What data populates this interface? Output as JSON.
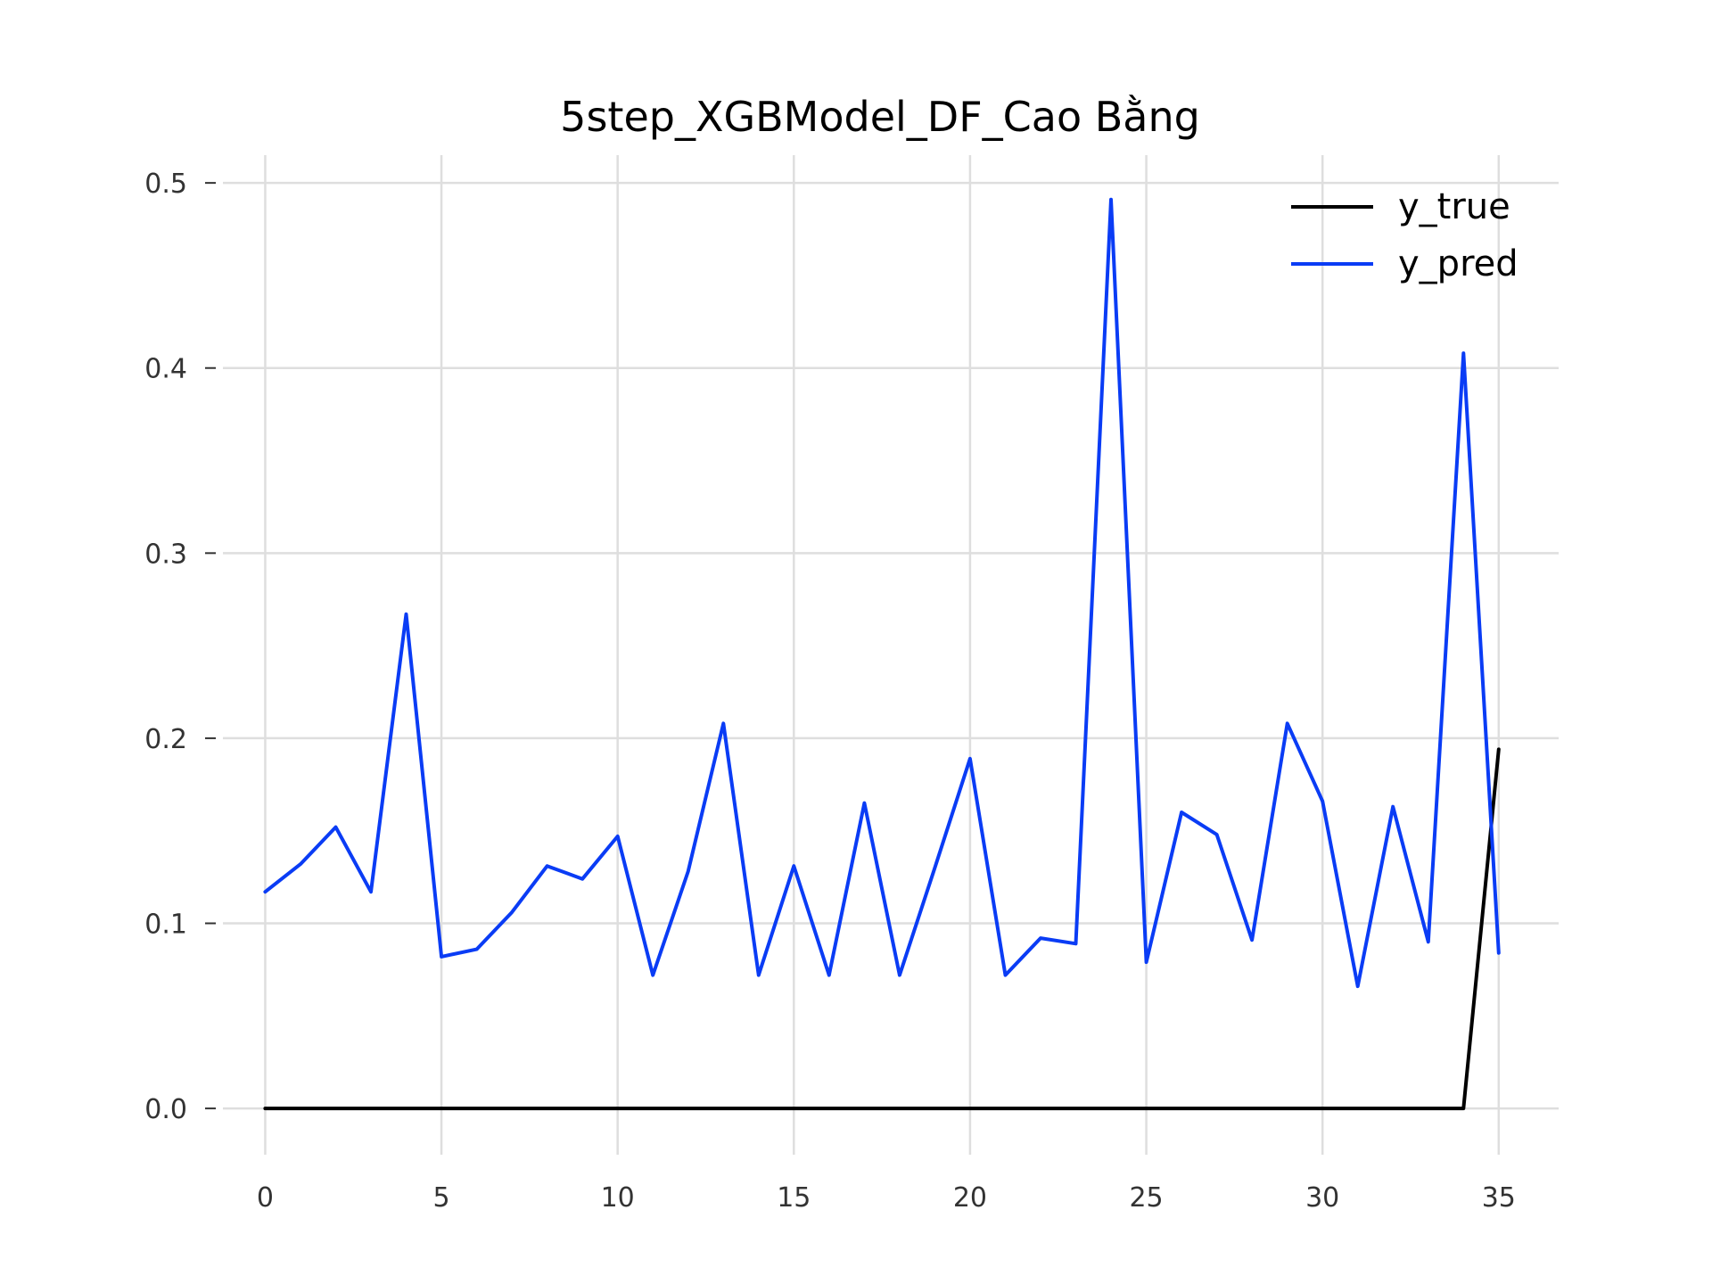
{
  "chart_data": {
    "type": "line",
    "title": "5step_XGBModel_DF_Cao Bằng",
    "xlabel": "",
    "ylabel": "",
    "x": [
      0,
      1,
      2,
      3,
      4,
      5,
      6,
      7,
      8,
      9,
      10,
      11,
      12,
      13,
      14,
      15,
      16,
      17,
      18,
      19,
      20,
      21,
      22,
      23,
      24,
      25,
      26,
      27,
      28,
      29,
      30,
      31,
      32,
      33,
      34,
      35
    ],
    "xlim": [
      -1.2,
      36.7
    ],
    "ylim": [
      -0.025,
      0.515
    ],
    "xticks": [
      0,
      5,
      10,
      15,
      20,
      25,
      30,
      35
    ],
    "xtick_labels": [
      "0",
      "5",
      "10",
      "15",
      "20",
      "25",
      "30",
      "35"
    ],
    "yticks": [
      0.0,
      0.1,
      0.2,
      0.3,
      0.4,
      0.5
    ],
    "ytick_labels": [
      "0.0",
      "0.1",
      "0.2",
      "0.3",
      "0.4",
      "0.5"
    ],
    "grid": true,
    "legend_position": "top-right",
    "series": [
      {
        "name": "y_true",
        "color": "#000000",
        "values": [
          0,
          0,
          0,
          0,
          0,
          0,
          0,
          0,
          0,
          0,
          0,
          0,
          0,
          0,
          0,
          0,
          0,
          0,
          0,
          0,
          0,
          0,
          0,
          0,
          0,
          0,
          0,
          0,
          0,
          0,
          0,
          0,
          0,
          0,
          0,
          0.194
        ]
      },
      {
        "name": "y_pred",
        "color": "#0a3cf5",
        "values": [
          0.117,
          0.132,
          0.152,
          0.117,
          0.267,
          0.082,
          0.086,
          0.106,
          0.131,
          0.124,
          0.147,
          0.072,
          0.128,
          0.208,
          0.072,
          0.131,
          0.072,
          0.165,
          0.072,
          0.13,
          0.189,
          0.072,
          0.092,
          0.089,
          0.491,
          0.079,
          0.16,
          0.148,
          0.091,
          0.208,
          0.166,
          0.066,
          0.163,
          0.09,
          0.408,
          0.084
        ]
      }
    ]
  }
}
